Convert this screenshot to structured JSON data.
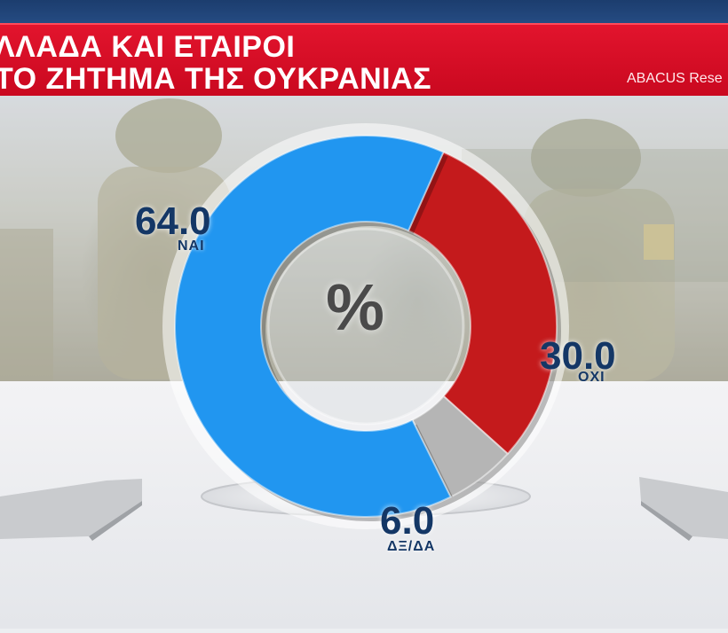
{
  "header": {
    "title_line1": "ΛΛΑΔΑ ΚΑΙ ΕΤΑΙΡΟΙ",
    "title_line2": "ΤΟ ΖΗΤΗΜΑ ΤΗΣ ΟΥΚΡΑΝΙΑΣ",
    "source": "ABACUS Rese"
  },
  "center_symbol": "%",
  "colors": {
    "header_red": "#d90e25",
    "topbar_navy": "#1c3d6e",
    "label_navy": "#143766"
  },
  "chart_data": {
    "type": "pie",
    "donut": true,
    "unit": "%",
    "categories": [
      "ΝΑΙ",
      "ΟΧΙ",
      "ΔΞ/ΔΑ"
    ],
    "values": [
      64.0,
      30.0,
      6.0
    ],
    "value_labels": [
      "64.0",
      "30.0",
      "6.0"
    ],
    "colors": [
      "#2196f0",
      "#c41a1c",
      "#b5b5b5"
    ]
  }
}
